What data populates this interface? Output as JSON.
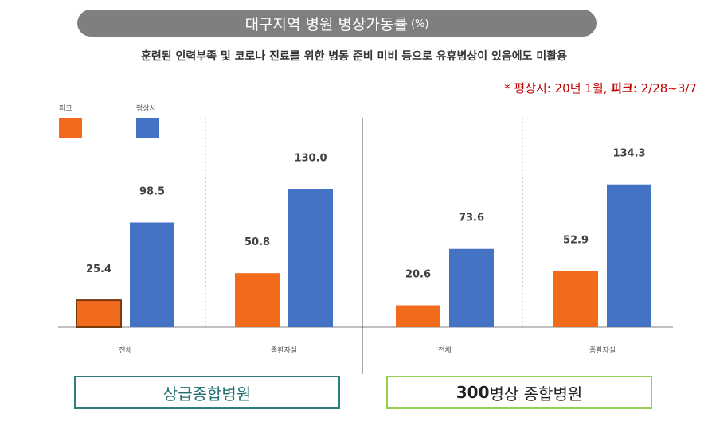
{
  "header": {
    "title": "대구지역 병원 병상가동률",
    "title_unit": "(%)",
    "subtitle": "훈련된 인력부족 및 코로나 진료를 위한 병동 준비 미비 등으로 유휴병상이 있음에도 미활용",
    "note_prefix": "* 평상시: 20년 1월,",
    "note_bold": "피크",
    "note_suffix": ": 2/28~3/7"
  },
  "colors": {
    "peak": "#f26b1d",
    "normal": "#4472c4",
    "title_bg": "#7f7f7f",
    "note": "#c00000",
    "box1": "#2e7d7d",
    "box2": "#92d050"
  },
  "groups": {
    "group1_label": "상급종합병원",
    "group2_label_bold": "300",
    "group2_label_rest": "병상 종합병원"
  },
  "chart_data": {
    "type": "bar",
    "legend": [
      "피크",
      "평상시"
    ],
    "legend_placement": "top-left",
    "categories": [
      "전체",
      "종환자실",
      "전체",
      "종환자실"
    ],
    "series": [
      {
        "name": "피크",
        "values": [
          25.4,
          50.8,
          20.6,
          52.9
        ]
      },
      {
        "name": "평상시",
        "values": [
          98.5,
          130.0,
          73.6,
          134.3
        ]
      }
    ],
    "value_labels": [
      [
        "25.4",
        "50.8",
        "20.6",
        "52.9"
      ],
      [
        "98.5",
        "130.0",
        "73.6",
        "134.3"
      ]
    ],
    "ylim": [
      0,
      140
    ],
    "grid": false
  }
}
